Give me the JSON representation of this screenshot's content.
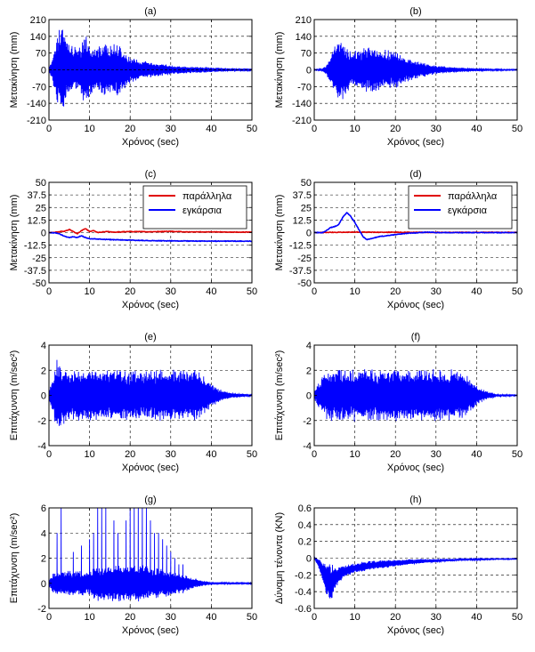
{
  "colors": {
    "blue": "#0000ff",
    "red": "#e00000",
    "axis": "#000000",
    "grid": "#000000"
  },
  "chart_data": [
    {
      "panel": "a",
      "type": "line",
      "title": "(a)",
      "xlabel": "Χρόνος (sec)",
      "ylabel": "Μετακίνηση (mm)",
      "xlim": [
        0,
        50
      ],
      "ylim": [
        -210,
        210
      ],
      "xticks": [
        0,
        10,
        20,
        30,
        40,
        50
      ],
      "yticks": [
        -210,
        -140,
        -70,
        0,
        70,
        140,
        210
      ],
      "grid": true,
      "series": [
        {
          "color": "#0000ff",
          "style": "solid",
          "x": [
            0,
            1,
            2,
            3,
            4,
            5,
            6,
            7,
            8,
            9,
            10,
            11,
            12,
            13,
            14,
            15,
            16,
            17,
            18,
            19,
            20,
            22,
            24,
            26,
            28,
            30,
            35,
            40,
            45,
            50
          ],
          "amplitude": [
            10,
            60,
            140,
            190,
            150,
            110,
            100,
            95,
            110,
            160,
            120,
            90,
            100,
            120,
            110,
            105,
            120,
            110,
            90,
            75,
            55,
            45,
            38,
            30,
            25,
            20,
            14,
            10,
            6,
            4
          ]
        },
        {
          "color": "#000000",
          "style": "dashed",
          "x": [
            0,
            50
          ],
          "y": [
            0,
            0
          ]
        }
      ]
    },
    {
      "panel": "b",
      "type": "line",
      "title": "(b)",
      "xlabel": "Χρόνος (sec)",
      "ylabel": "Μετακίνηση (mm)",
      "xlim": [
        0,
        50
      ],
      "ylim": [
        -210,
        210
      ],
      "xticks": [
        0,
        10,
        20,
        30,
        40,
        50
      ],
      "yticks": [
        -210,
        -140,
        -70,
        0,
        70,
        140,
        210
      ],
      "grid": true,
      "series": [
        {
          "color": "#0000ff",
          "style": "solid",
          "x": [
            0,
            2,
            3,
            4,
            5,
            6,
            7,
            8,
            9,
            10,
            12,
            14,
            16,
            18,
            20,
            22,
            24,
            26,
            28,
            30,
            35,
            40,
            45,
            50
          ],
          "amplitude": [
            2,
            5,
            20,
            60,
            110,
            140,
            130,
            100,
            85,
            80,
            90,
            100,
            85,
            85,
            80,
            55,
            45,
            35,
            25,
            18,
            10,
            6,
            3,
            2
          ]
        }
      ]
    },
    {
      "panel": "c",
      "type": "line",
      "title": "(c)",
      "xlabel": "Χρόνος (sec)",
      "ylabel": "Μετακίνηση (mm)",
      "xlim": [
        0,
        50
      ],
      "ylim": [
        -50,
        50
      ],
      "xticks": [
        0,
        10,
        20,
        30,
        40,
        50
      ],
      "yticks": [
        -50,
        -37.5,
        -25,
        -12.5,
        0,
        12.5,
        25,
        37.5,
        50
      ],
      "grid": true,
      "legend": "top-right",
      "series": [
        {
          "name": "παράλληλα",
          "color": "#e00000",
          "style": "solid",
          "x": [
            0,
            2,
            4,
            5,
            6,
            7,
            8,
            9,
            10,
            11,
            12,
            14,
            16,
            20,
            25,
            30,
            35,
            40,
            45,
            50
          ],
          "y": [
            0,
            0.5,
            1.5,
            3,
            1,
            -1,
            2,
            4,
            1,
            2,
            0,
            1,
            0.5,
            1,
            0.8,
            1.2,
            0.6,
            0.8,
            0.5,
            0.5
          ]
        },
        {
          "name": "εγκάρσια",
          "color": "#0000ff",
          "style": "solid",
          "x": [
            0,
            2,
            3,
            4,
            5,
            6,
            7,
            8,
            9,
            10,
            12,
            15,
            20,
            25,
            30,
            35,
            40,
            45,
            50
          ],
          "y": [
            0,
            -0.5,
            -2,
            -4,
            -5,
            -4,
            -5,
            -3,
            -5,
            -6,
            -6.5,
            -7,
            -7.5,
            -8,
            -8.2,
            -8.4,
            -8.5,
            -8.5,
            -8.5
          ]
        }
      ]
    },
    {
      "panel": "d",
      "type": "line",
      "title": "(d)",
      "xlabel": "Χρόνος (sec)",
      "ylabel": "Μετακίνηση (mm)",
      "xlim": [
        0,
        50
      ],
      "ylim": [
        -50,
        50
      ],
      "xticks": [
        0,
        10,
        20,
        30,
        40,
        50
      ],
      "yticks": [
        -50,
        -37.5,
        -25,
        -12.5,
        0,
        12.5,
        25,
        37.5,
        50
      ],
      "grid": true,
      "legend": "top-right",
      "series": [
        {
          "name": "παράλληλα",
          "color": "#e00000",
          "style": "solid",
          "x": [
            0,
            5,
            10,
            20,
            30,
            40,
            50
          ],
          "y": [
            0,
            0.3,
            0.5,
            0.3,
            0.2,
            0.2,
            0.2
          ]
        },
        {
          "name": "εγκάρσια",
          "color": "#0000ff",
          "style": "solid",
          "x": [
            0,
            2,
            3,
            4,
            5,
            6,
            7,
            8,
            9,
            10,
            11,
            12,
            13,
            14,
            16,
            18,
            20,
            22,
            24,
            26,
            28,
            30,
            35,
            40,
            45,
            50
          ],
          "y": [
            0,
            0,
            2,
            5,
            6,
            8,
            15,
            20,
            16,
            10,
            3,
            -4,
            -7,
            -6,
            -4,
            -3,
            -2,
            -1,
            -0.5,
            0,
            0.5,
            0,
            0,
            0,
            0,
            0
          ]
        }
      ]
    },
    {
      "panel": "e",
      "type": "line",
      "title": "(e)",
      "xlabel": "Χρόνος (sec)",
      "ylabel": "Επιτάχυνση (m/sec²)",
      "xlim": [
        0,
        50
      ],
      "ylim": [
        -4,
        4
      ],
      "xticks": [
        0,
        10,
        20,
        30,
        40,
        50
      ],
      "yticks": [
        -4,
        -2,
        0,
        2,
        4
      ],
      "grid": true,
      "series": [
        {
          "color": "#0000ff",
          "style": "solid",
          "x": [
            0,
            1,
            2,
            3,
            5,
            10,
            15,
            18,
            20,
            25,
            30,
            33,
            35,
            36,
            37,
            38,
            40,
            42,
            45,
            50
          ],
          "amplitude": [
            0.5,
            1.5,
            3,
            2.5,
            2.1,
            2.1,
            2.1,
            2.1,
            2,
            2.1,
            2.1,
            2.1,
            2.1,
            2.3,
            2,
            1.6,
            1,
            0.5,
            0.2,
            0.05
          ]
        }
      ]
    },
    {
      "panel": "f",
      "type": "line",
      "title": "(f)",
      "xlabel": "Χρόνος (sec)",
      "ylabel": "Επιτάχυνση (m/sec²)",
      "xlim": [
        0,
        50
      ],
      "ylim": [
        -4,
        4
      ],
      "xticks": [
        0,
        10,
        20,
        30,
        40,
        50
      ],
      "yticks": [
        -4,
        -2,
        0,
        2,
        4
      ],
      "grid": true,
      "series": [
        {
          "color": "#0000ff",
          "style": "solid",
          "x": [
            0,
            1,
            2,
            3,
            5,
            10,
            15,
            20,
            25,
            30,
            33,
            35,
            36,
            38,
            40,
            42,
            45,
            50
          ],
          "amplitude": [
            0.3,
            1,
            1.5,
            2,
            2.1,
            2.1,
            2.1,
            2.1,
            2.1,
            2.1,
            2.1,
            2.1,
            2,
            1.5,
            0.8,
            0.4,
            0.1,
            0.05
          ]
        }
      ]
    },
    {
      "panel": "g",
      "type": "line",
      "title": "(g)",
      "xlabel": "Χρόνος (sec)",
      "ylabel": "Επιτάχυνση (m/sec²)",
      "xlim": [
        0,
        50
      ],
      "ylim": [
        -2,
        6
      ],
      "xticks": [
        0,
        10,
        20,
        30,
        40,
        50
      ],
      "yticks": [
        -2,
        0,
        2,
        4,
        6
      ],
      "grid": true,
      "series": [
        {
          "color": "#0000ff",
          "style": "solid",
          "x": [
            0,
            2,
            4,
            6,
            8,
            10,
            12,
            14,
            16,
            18,
            20,
            22,
            24,
            26,
            28,
            30,
            32,
            34,
            36,
            38,
            40,
            45,
            50
          ],
          "amplitude": [
            0.5,
            1,
            1,
            1,
            1,
            1,
            1.5,
            1.5,
            1.5,
            1.5,
            1.5,
            1.5,
            1.5,
            1.2,
            1.2,
            1,
            0.8,
            0.6,
            0.4,
            0.2,
            0.1,
            0.05,
            0.05
          ],
          "spikes": [
            [
              2,
              4
            ],
            [
              3,
              6
            ],
            [
              6,
              2.5
            ],
            [
              8,
              3
            ],
            [
              10,
              3.5
            ],
            [
              11,
              4
            ],
            [
              12,
              6
            ],
            [
              13,
              6
            ],
            [
              14,
              6
            ],
            [
              16,
              5
            ],
            [
              17,
              4
            ],
            [
              19,
              5
            ],
            [
              20,
              6
            ],
            [
              21,
              6
            ],
            [
              22,
              6
            ],
            [
              23,
              6
            ],
            [
              24,
              6
            ],
            [
              25,
              5
            ],
            [
              26,
              4
            ],
            [
              27,
              4
            ],
            [
              28,
              3.5
            ],
            [
              29,
              3
            ],
            [
              30,
              2.5
            ],
            [
              31,
              2
            ],
            [
              32,
              1.5
            ],
            [
              33,
              1.5
            ]
          ]
        }
      ]
    },
    {
      "panel": "h",
      "type": "line",
      "title": "(h)",
      "xlabel": "Χρόνος (sec)",
      "ylabel": "Δύναμη τένοντα (KN)",
      "xlim": [
        0,
        50
      ],
      "ylim": [
        -0.6,
        0.6
      ],
      "xticks": [
        0,
        10,
        20,
        30,
        40,
        50
      ],
      "yticks": [
        -0.6,
        -0.4,
        -0.2,
        0,
        0.2,
        0.4,
        0.6
      ],
      "grid": true,
      "series": [
        {
          "color": "#0000ff",
          "style": "solid",
          "x": [
            0,
            1,
            2,
            3,
            4,
            5,
            6,
            7,
            8,
            10,
            12,
            15,
            18,
            20,
            25,
            30,
            35,
            40,
            45,
            50
          ],
          "center": [
            0,
            -0.05,
            -0.15,
            -0.25,
            -0.3,
            -0.25,
            -0.2,
            -0.17,
            -0.15,
            -0.12,
            -0.1,
            -0.08,
            -0.07,
            -0.06,
            -0.04,
            -0.03,
            -0.02,
            -0.015,
            -0.01,
            -0.01
          ],
          "amplitude": [
            0.01,
            0.05,
            0.12,
            0.2,
            0.25,
            0.15,
            0.1,
            0.08,
            0.07,
            0.06,
            0.06,
            0.05,
            0.05,
            0.04,
            0.03,
            0.02,
            0.01,
            0.01,
            0.005,
            0.005
          ]
        }
      ]
    }
  ]
}
